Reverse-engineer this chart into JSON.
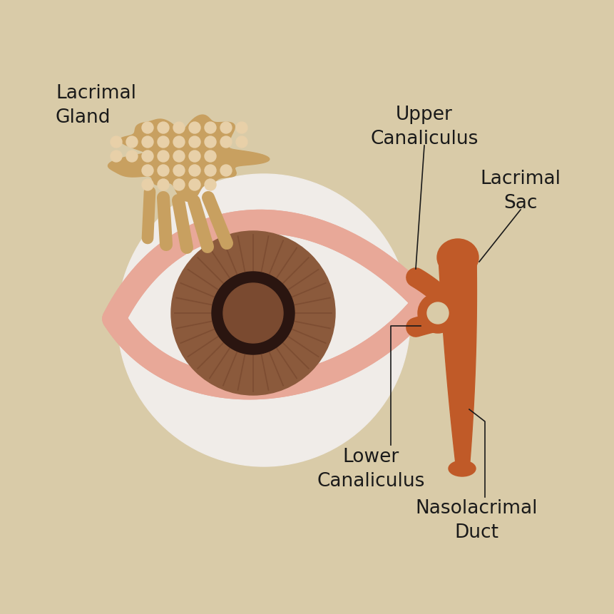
{
  "background_color": "#d9cba8",
  "eye_white_color": "#f0ece8",
  "eyelid_color": "#e8a898",
  "iris_outer_color": "#8b5a3c",
  "iris_mid_color": "#7a4a30",
  "pupil_color": "#2a1510",
  "lacrimal_color": "#c05a28",
  "gland_body_color": "#c8a060",
  "gland_dot_color": "#e8d0a8",
  "text_color": "#1a1a1a",
  "line_color": "#1a1a1a",
  "labels": {
    "lacrimal_gland": "Lacrimal\nGland",
    "upper_canaliculus": "Upper\nCanaliculus",
    "lacrimal_sac": "Lacrimal\nSac",
    "lower_canaliculus": "Lower\nCanaliculus",
    "nasolacrimal_duct": "Nasolacrimal\nDuct"
  },
  "figsize": [
    8.62,
    8.62
  ],
  "dpi": 100
}
